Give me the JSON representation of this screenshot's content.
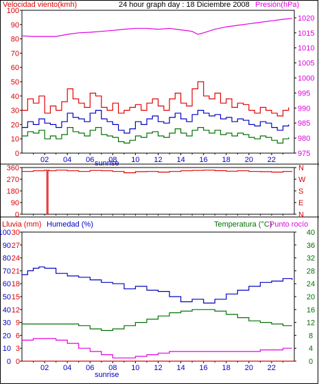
{
  "colors": {
    "red": "#e00000",
    "blue": "#0000c0",
    "green": "#007000",
    "magenta": "#e000e0",
    "axis": "#000000",
    "grid": "#d0d0d0"
  },
  "header": {
    "wind_label": "Velocidad viento(kmh)",
    "title": "24 hour graph day : 18 Diciembre 2008",
    "pressure_label": "Presión(hPa)"
  },
  "bottom_header": {
    "rain_label": "Lluvia (mm)",
    "humidity_label": "Humedad (%)",
    "temp_label": "Temperatura (°C)",
    "dew_label": "Punto rocío"
  },
  "sunrise_label": "sunrise",
  "chart_data": [
    {
      "type": "line",
      "name": "wind-pressure",
      "x_ticks": [
        "02",
        "04",
        "06",
        "08",
        "10",
        "12",
        "14",
        "16",
        "18",
        "20",
        "22"
      ],
      "y_left_ticks": [
        "0",
        "10",
        "20",
        "30",
        "40",
        "50",
        "60",
        "70",
        "80",
        "90",
        "100"
      ],
      "y_left_range": [
        0,
        100
      ],
      "y_right_ticks": [
        "975",
        "980",
        "985",
        "990",
        "995",
        "1000",
        "1005",
        "1010",
        "1015",
        "1020"
      ],
      "y_right_range": [
        975,
        1022.5
      ],
      "x_range": [
        0,
        24
      ],
      "series": [
        {
          "key": "wind_gust",
          "axis": "left",
          "color": "red",
          "x": [
            0,
            0.5,
            1,
            1.5,
            2,
            2.5,
            3,
            3.5,
            4,
            4.5,
            5,
            5.5,
            6,
            6.5,
            7,
            7.5,
            8,
            8.5,
            9,
            9.5,
            10,
            10.5,
            11,
            11.5,
            12,
            12.5,
            13,
            13.5,
            14,
            14.5,
            15,
            15.5,
            16,
            16.5,
            17,
            17.5,
            18,
            18.5,
            19,
            19.5,
            20,
            20.5,
            21,
            21.5,
            22,
            22.5,
            23,
            23.5
          ],
          "y": [
            30,
            38,
            35,
            40,
            28,
            33,
            30,
            36,
            45,
            38,
            35,
            32,
            42,
            40,
            32,
            30,
            35,
            28,
            30,
            32,
            34,
            30,
            35,
            38,
            33,
            30,
            38,
            42,
            35,
            33,
            45,
            50,
            40,
            38,
            42,
            35,
            38,
            32,
            35,
            34,
            30,
            28,
            32,
            30,
            28,
            26,
            30,
            32
          ]
        },
        {
          "key": "wind_avg",
          "axis": "left",
          "color": "blue",
          "x": [
            0,
            0.5,
            1,
            1.5,
            2,
            2.5,
            3,
            3.5,
            4,
            4.5,
            5,
            5.5,
            6,
            6.5,
            7,
            7.5,
            8,
            8.5,
            9,
            9.5,
            10,
            10.5,
            11,
            11.5,
            12,
            12.5,
            13,
            13.5,
            14,
            14.5,
            15,
            15.5,
            16,
            16.5,
            17,
            17.5,
            18,
            18.5,
            19,
            19.5,
            20,
            20.5,
            21,
            21.5,
            22,
            22.5,
            23,
            23.5
          ],
          "y": [
            18,
            22,
            20,
            24,
            21,
            20,
            18,
            22,
            28,
            25,
            24,
            22,
            28,
            30,
            24,
            22,
            20,
            16,
            14,
            17,
            22,
            20,
            24,
            26,
            22,
            21,
            25,
            28,
            24,
            22,
            27,
            30,
            28,
            26,
            27,
            24,
            25,
            22,
            24,
            23,
            20,
            19,
            22,
            21,
            18,
            16,
            19,
            20
          ]
        },
        {
          "key": "wind_low",
          "axis": "left",
          "color": "green",
          "x": [
            0,
            0.5,
            1,
            1.5,
            2,
            2.5,
            3,
            3.5,
            4,
            4.5,
            5,
            5.5,
            6,
            6.5,
            7,
            7.5,
            8,
            8.5,
            9,
            9.5,
            10,
            10.5,
            11,
            11.5,
            12,
            12.5,
            13,
            13.5,
            14,
            14.5,
            15,
            15.5,
            16,
            16.5,
            17,
            17.5,
            18,
            18.5,
            19,
            19.5,
            20,
            20.5,
            21,
            21.5,
            22,
            22.5,
            23,
            23.5
          ],
          "y": [
            12,
            15,
            14,
            16,
            10,
            12,
            10,
            13,
            18,
            15,
            14,
            12,
            16,
            18,
            13,
            12,
            11,
            8,
            7,
            9,
            12,
            11,
            14,
            15,
            12,
            11,
            14,
            17,
            14,
            12,
            16,
            18,
            16,
            14,
            16,
            13,
            14,
            12,
            14,
            13,
            11,
            10,
            12,
            11,
            9,
            7,
            10,
            11
          ]
        },
        {
          "key": "pressure",
          "axis": "right",
          "color": "magenta",
          "x": [
            0,
            1,
            2,
            3,
            4,
            5,
            6,
            7,
            8,
            9,
            10,
            11,
            12,
            13,
            14,
            15,
            15.5,
            16,
            17,
            18,
            19,
            20,
            21,
            22,
            23,
            23.8
          ],
          "y": [
            1014,
            1013.8,
            1013.8,
            1013.8,
            1014.5,
            1015,
            1015.2,
            1015.5,
            1015.8,
            1016.2,
            1016.5,
            1016.5,
            1016.2,
            1016.5,
            1016,
            1015.5,
            1014.5,
            1015,
            1016.2,
            1017,
            1017.5,
            1018,
            1018.5,
            1019,
            1019.5,
            1019.8
          ]
        }
      ]
    },
    {
      "type": "line",
      "name": "wind-direction",
      "y_left_ticks": [
        "360",
        "270",
        "180",
        "90",
        "0"
      ],
      "y_left_range": [
        0,
        360
      ],
      "y_right_ticks": [
        "N",
        "W",
        "S",
        "E",
        "N"
      ],
      "x_range": [
        0,
        24
      ],
      "series": [
        {
          "key": "direction",
          "color": "red",
          "x": [
            0,
            1,
            2,
            2.2,
            2.3,
            2.4,
            3,
            4,
            5,
            6,
            7,
            8,
            9,
            10,
            11,
            12,
            13,
            14,
            15,
            16,
            17,
            18,
            19,
            20,
            21,
            22,
            23,
            23.8
          ],
          "y": [
            330,
            335,
            340,
            0,
            340,
            335,
            340,
            335,
            330,
            338,
            335,
            330,
            320,
            328,
            330,
            325,
            330,
            335,
            338,
            340,
            336,
            332,
            335,
            330,
            328,
            325,
            330,
            328
          ]
        }
      ]
    },
    {
      "type": "line",
      "name": "rain-humidity-temp",
      "x_ticks": [
        "02",
        "04",
        "06",
        "08",
        "10",
        "12",
        "14",
        "16",
        "18",
        "20",
        "22"
      ],
      "y_left_ticks": [
        "0",
        "10",
        "20",
        "30",
        "40",
        "50",
        "60",
        "70",
        "80",
        "90",
        "100"
      ],
      "y_left2_ticks": [
        "0",
        "3",
        "6",
        "9",
        "12",
        "15",
        "18",
        "21",
        "24",
        "27",
        "30"
      ],
      "y_left_range": [
        0,
        100
      ],
      "y_right_ticks": [
        "0",
        "4",
        "8",
        "12",
        "16",
        "20",
        "24",
        "28",
        "32",
        "36",
        "40"
      ],
      "y_right_range": [
        0,
        40
      ],
      "x_range": [
        0,
        24
      ],
      "series": [
        {
          "key": "humidity",
          "axis": "left",
          "color": "blue",
          "x": [
            0,
            0.5,
            1,
            1.5,
            2,
            3,
            4,
            5,
            6,
            7,
            8,
            9,
            10,
            11,
            12,
            13,
            14,
            15,
            16,
            17,
            18,
            19,
            20,
            21,
            22,
            23,
            23.8
          ],
          "y": [
            67,
            70,
            72,
            73,
            72,
            68,
            66,
            65,
            63,
            61,
            60,
            56,
            58,
            55,
            54,
            50,
            46,
            48,
            45,
            48,
            52,
            55,
            58,
            61,
            62,
            64,
            63
          ]
        },
        {
          "key": "rain",
          "axis": "left",
          "color": "red",
          "x": [
            0,
            24
          ],
          "y": [
            0,
            0
          ]
        },
        {
          "key": "temperature",
          "axis": "right",
          "color": "green",
          "x": [
            0,
            1,
            2,
            3,
            4,
            5,
            6,
            7,
            8,
            9,
            10,
            11,
            12,
            13,
            14,
            15,
            16,
            17,
            18,
            19,
            20,
            21,
            22,
            23,
            23.8
          ],
          "y": [
            11.5,
            11.5,
            11.5,
            11.5,
            11.5,
            11,
            10,
            9.5,
            10,
            11,
            12,
            13,
            14,
            15,
            15.5,
            16,
            16,
            15.5,
            14.5,
            13.5,
            12.5,
            12,
            11.5,
            11,
            11
          ]
        },
        {
          "key": "dewpoint",
          "axis": "right",
          "color": "magenta",
          "x": [
            0,
            1,
            2,
            3,
            4,
            5,
            6,
            7,
            8,
            9,
            10,
            11,
            12,
            13,
            14,
            15,
            16,
            17,
            18,
            19,
            20,
            21,
            22,
            23,
            23.8
          ],
          "y": [
            6.5,
            7,
            7,
            6.5,
            5.5,
            4,
            3,
            2,
            1,
            1,
            1.5,
            2,
            2.5,
            3,
            3,
            3,
            3,
            3,
            3,
            3,
            3,
            3.5,
            3.5,
            4,
            4
          ]
        }
      ]
    }
  ]
}
